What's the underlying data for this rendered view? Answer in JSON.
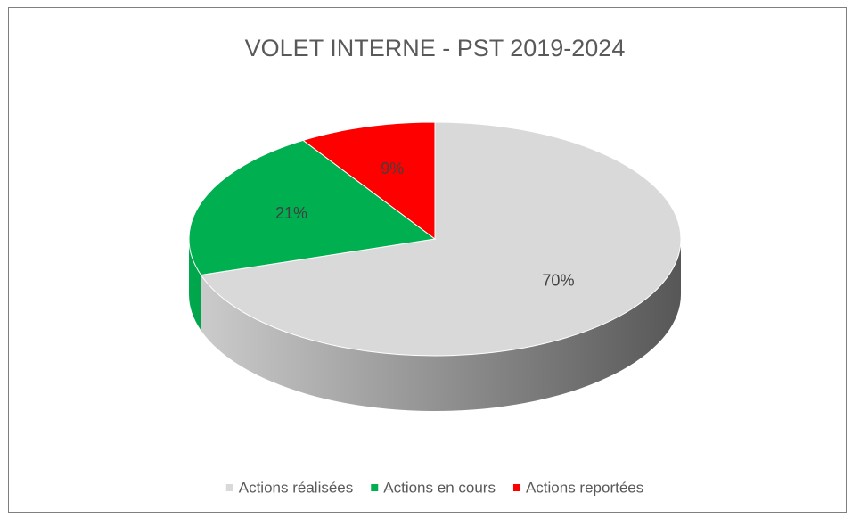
{
  "chart_data": {
    "type": "pie",
    "title": "VOLET INTERNE - PST 2019-2024",
    "categories": [
      "Actions réalisées",
      "Actions en cours",
      "Actions reportées"
    ],
    "values": [
      70,
      21,
      9
    ],
    "value_labels": [
      "70%",
      "21%",
      "9%"
    ],
    "colors": [
      "#d9d9d9",
      "#00b050",
      "#ff0000"
    ]
  }
}
